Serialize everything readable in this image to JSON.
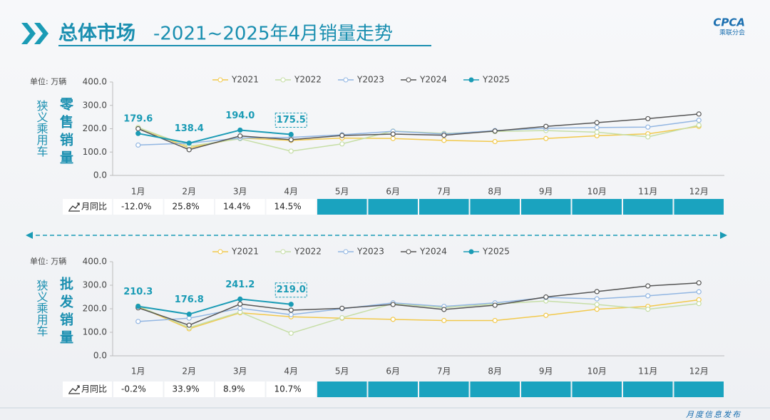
{
  "header": {
    "title_main": "总体市场",
    "title_rest": "-2021~2025年4月销量走势",
    "logo_text": "CPCA",
    "logo_sub": "乘联分会"
  },
  "footer": {
    "text": "月度信息发布"
  },
  "chart_data": [
    {
      "type": "line",
      "unit": "单位: 万辆",
      "side_label": "狭义乘用车",
      "title": "零售销量",
      "categories": [
        "1月",
        "2月",
        "3月",
        "4月",
        "5月",
        "6月",
        "7月",
        "8月",
        "9月",
        "10月",
        "11月",
        "12月"
      ],
      "ylim": [
        0,
        400
      ],
      "yticks": [
        {
          "value": 0,
          "label": "0.0"
        },
        {
          "value": 100,
          "label": "100.0"
        },
        {
          "value": 200,
          "label": "200.0"
        },
        {
          "value": 300,
          "label": "300.0"
        },
        {
          "value": 400,
          "label": "400.0"
        }
      ],
      "series": [
        {
          "name": "Y2021",
          "color": "#f2c94c",
          "values": [
            205,
            118,
            160,
            150,
            160,
            158,
            150,
            145,
            158,
            170,
            178,
            210
          ]
        },
        {
          "name": "Y2022",
          "color": "#c6dea6",
          "values": [
            205,
            125,
            157,
            104,
            135,
            190,
            180,
            188,
            192,
            185,
            165,
            215
          ]
        },
        {
          "name": "Y2023",
          "color": "#92b6e2",
          "values": [
            130,
            138,
            160,
            163,
            174,
            189,
            177,
            192,
            202,
            205,
            207,
            236
          ]
        },
        {
          "name": "Y2024",
          "color": "#555555",
          "values": [
            200,
            110,
            169,
            153,
            171,
            177,
            172,
            190,
            210,
            226,
            243,
            263
          ]
        },
        {
          "name": "Y2025",
          "color": "#1a9bb5",
          "values": [
            179.6,
            138.4,
            194.0,
            175.5,
            null,
            null,
            null,
            null,
            null,
            null,
            null,
            null
          ],
          "value_labels": [
            "179.6",
            "138.4",
            "194.0",
            "175.5",
            null,
            null,
            null,
            null,
            null,
            null,
            null,
            null
          ]
        }
      ],
      "yoy_label": "月同比",
      "yoy": [
        "-12.0%",
        "25.8%",
        "14.4%",
        "14.5%"
      ]
    },
    {
      "type": "line",
      "unit": "单位: 万辆",
      "side_label": "狭义乘用车",
      "title": "批发销量",
      "categories": [
        "1月",
        "2月",
        "3月",
        "4月",
        "5月",
        "6月",
        "7月",
        "8月",
        "9月",
        "10月",
        "11月",
        "12月"
      ],
      "ylim": [
        0,
        400
      ],
      "yticks": [
        {
          "value": 0,
          "label": "0.0"
        },
        {
          "value": 100,
          "label": "100.0"
        },
        {
          "value": 200,
          "label": "200.0"
        },
        {
          "value": 300,
          "label": "300.0"
        },
        {
          "value": 400,
          "label": "400.0"
        }
      ],
      "series": [
        {
          "name": "Y2021",
          "color": "#f2c94c",
          "values": [
            210,
            115,
            183,
            166,
            160,
            155,
            150,
            150,
            172,
            198,
            210,
            238
          ]
        },
        {
          "name": "Y2022",
          "color": "#c6dea6",
          "values": [
            212,
            120,
            186,
            96,
            162,
            222,
            205,
            220,
            233,
            218,
            198,
            222
          ]
        },
        {
          "name": "Y2023",
          "color": "#92b6e2",
          "values": [
            146,
            160,
            202,
            175,
            200,
            225,
            210,
            225,
            248,
            242,
            255,
            272
          ]
        },
        {
          "name": "Y2024",
          "color": "#555555",
          "values": [
            204,
            130,
            220,
            194,
            202,
            218,
            197,
            215,
            250,
            273,
            297,
            310
          ]
        },
        {
          "name": "Y2025",
          "color": "#1a9bb5",
          "values": [
            210.3,
            176.8,
            241.2,
            219.0,
            null,
            null,
            null,
            null,
            null,
            null,
            null,
            null
          ],
          "value_labels": [
            "210.3",
            "176.8",
            "241.2",
            "219.0",
            null,
            null,
            null,
            null,
            null,
            null,
            null,
            null
          ]
        }
      ],
      "yoy_label": "月同比",
      "yoy": [
        "-0.2%",
        "33.9%",
        "8.9%",
        "10.7%"
      ]
    }
  ]
}
